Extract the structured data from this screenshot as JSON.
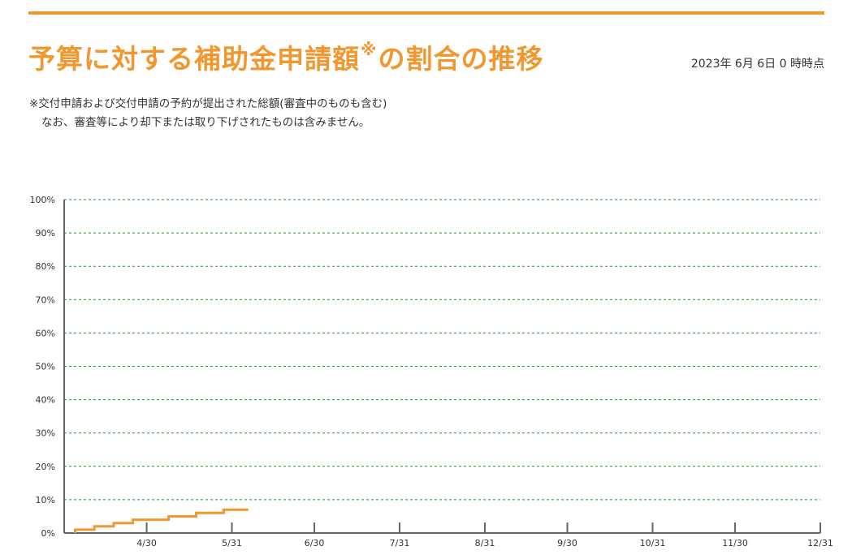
{
  "header": {
    "title_main": "予算に対する補助金申請額",
    "title_mark": "※",
    "title_tail": "の割合の推移",
    "timestamp": "2023年 6月 6日 0 時時点"
  },
  "notes": {
    "line1": "※交付申請および交付申請の予約が提出された総額(審査中のものも含む)",
    "line2": "なお、審査等により却下または取り下げされたものは含みません。"
  },
  "colors": {
    "accent": "#f0972f",
    "grid": "#2e8b2e",
    "axis": "#666666"
  },
  "chart_data": {
    "type": "line",
    "step": true,
    "x_start": "2023-03-31",
    "x_end": "2023-12-31",
    "ylim": [
      0,
      100
    ],
    "y_ticks": [
      0,
      10,
      20,
      30,
      40,
      50,
      60,
      70,
      80,
      90,
      100
    ],
    "y_tick_labels": [
      "0%",
      "10%",
      "20%",
      "30%",
      "40%",
      "50%",
      "60%",
      "70%",
      "80%",
      "90%",
      "100%"
    ],
    "x_ticks": [
      "2023-04-30",
      "2023-05-31",
      "2023-06-30",
      "2023-07-31",
      "2023-08-31",
      "2023-09-30",
      "2023-10-31",
      "2023-11-30",
      "2023-12-31"
    ],
    "x_tick_labels": [
      "4/30",
      "5/31",
      "6/30",
      "7/31",
      "8/31",
      "9/30",
      "10/31",
      "11/30",
      "12/31"
    ],
    "grid": true,
    "series": [
      {
        "color": "#f0972f",
        "points": [
          [
            "2023-04-04",
            0
          ],
          [
            "2023-04-04",
            1
          ],
          [
            "2023-04-11",
            1
          ],
          [
            "2023-04-11",
            2
          ],
          [
            "2023-04-18",
            2
          ],
          [
            "2023-04-18",
            3
          ],
          [
            "2023-04-25",
            3
          ],
          [
            "2023-04-25",
            4
          ],
          [
            "2023-05-08",
            4
          ],
          [
            "2023-05-08",
            5
          ],
          [
            "2023-05-18",
            5
          ],
          [
            "2023-05-18",
            6
          ],
          [
            "2023-05-28",
            6
          ],
          [
            "2023-05-28",
            7
          ],
          [
            "2023-06-06",
            7
          ]
        ]
      }
    ]
  }
}
